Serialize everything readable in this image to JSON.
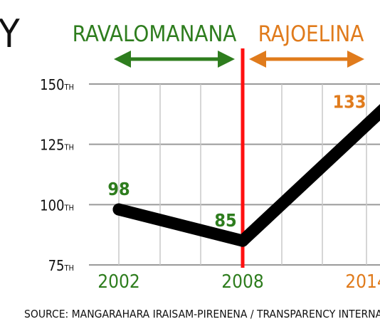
{
  "title_fragment": "Y",
  "periods": [
    {
      "name": "RAVALOMANANA",
      "color": "#2e7d1e"
    },
    {
      "name": "RAJOELINA",
      "color": "#e07b1c"
    }
  ],
  "source": "SOURCE: MANGARAHARA IRAISAM-PIRENENA / TRANSPARENCY INTERNATIO",
  "colors": {
    "line": "#000000",
    "grid": "#9a9a9a",
    "divider": "#ff1010",
    "label_green": "#2e7d1e",
    "label_orange": "#e07b1c"
  },
  "chart_data": {
    "type": "line",
    "x": [
      2002,
      2008,
      2014
    ],
    "y": [
      98,
      85,
      133
    ],
    "point_labels": [
      "98",
      "85",
      "133"
    ],
    "point_label_colors": [
      "#2e7d1e",
      "#2e7d1e",
      "#e07b1c"
    ],
    "x_tick_labels": [
      "2002",
      "2008",
      "2014"
    ],
    "x_tick_colors": [
      "#2e7d1e",
      "#2e7d1e",
      "#e07b1c"
    ],
    "y_ticks": [
      {
        "value": 150,
        "num": "150",
        "suffix": "TH"
      },
      {
        "value": 125,
        "num": "125",
        "suffix": "TH"
      },
      {
        "value": 100,
        "num": "100",
        "suffix": "TH"
      },
      {
        "value": 75,
        "num": "75",
        "suffix": "TH"
      }
    ],
    "ylim": [
      75,
      150
    ],
    "y_inverted": false,
    "divider_x": 2008,
    "grid": true
  }
}
